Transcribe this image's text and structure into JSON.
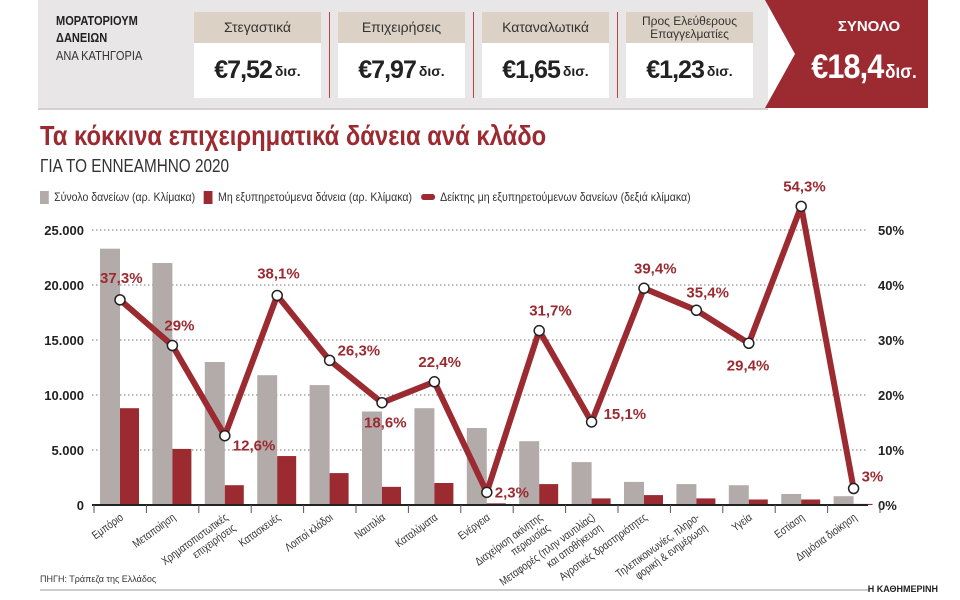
{
  "header": {
    "title": "ΜΟΡΑΤΟΡΙΟΥΜ ΔΑΝΕΙΩΝ",
    "subtitle": "ΑΝΑ ΚΑΤΗΓΟΡΙΑ",
    "cards": [
      {
        "label": "Στεγαστικά",
        "value": "€7,52",
        "unit": "δισ."
      },
      {
        "label": "Επιχειρήσεις",
        "value": "€7,97",
        "unit": "δισ."
      },
      {
        "label": "Καταναλωτικά",
        "value": "€1,65",
        "unit": "δισ."
      },
      {
        "label": "Προς Ελεύθερους Επαγγελματίες",
        "value": "€1,23",
        "unit": "δισ."
      }
    ],
    "total": {
      "label": "ΣΥΝΟΛΟ",
      "value": "€18,4",
      "unit": "δισ."
    },
    "accent": "#9b2a31"
  },
  "chart_data": {
    "type": "bar",
    "title": "Τα κόκκινα επιχειρηματικά δάνεια ανά κλάδο",
    "subtitle": "ΓΙΑ ΤΟ ΕΝΝΕΑΜΗΝΟ 2020",
    "categories": [
      "Εμπόριο",
      "Μεταποίηση",
      "Χρηματοπιστωτικές επιχειρήσεις",
      "Κατασκευές",
      "Λοιποί κλάδοι",
      "Ναυτιλία",
      "Καταλύματα",
      "Ενέργεια",
      "Διαχείριση ακίνητης περιουσίας",
      "Μεταφορές (πλην ναυτιλίας) και αποθήκευση",
      "Αγροτικές δραστηριότητες",
      "Τηλεπικοινωνίες, πληροφορική & ενημέρωση",
      "Υγεία",
      "Εστίαση",
      "Δημόσια διοίκηση"
    ],
    "category_lines": [
      [
        "Εμπόριο"
      ],
      [
        "Μεταποίηση"
      ],
      [
        "Χρηματοπιστωτικές",
        "επιχειρήσεις"
      ],
      [
        "Κατασκευές"
      ],
      [
        "Λοιποί κλάδοι"
      ],
      [
        "Ναυτιλία"
      ],
      [
        "Καταλύματα"
      ],
      [
        "Ενέργεια"
      ],
      [
        "Διαχείριση ακίνητης",
        "περιουσίας"
      ],
      [
        "Μεταφορές (πλην ναυτιλίας)",
        "και αποθήκευση"
      ],
      [
        "Αγροτικές δραστηριότητες"
      ],
      [
        "Τηλεπικοινωνίες, πληρο-",
        "φορική & ενημέρωση"
      ],
      [
        "Υγεία"
      ],
      [
        "Εστίαση"
      ],
      [
        "Δημόσια διοίκηση"
      ]
    ],
    "series": [
      {
        "name": "Σύνολο δανείων (αρ. Κλίμακα)",
        "type": "bar",
        "axis": "left",
        "color": "#b3abaa",
        "values": [
          23300,
          22000,
          13000,
          11800,
          10900,
          8500,
          8800,
          7000,
          5800,
          3900,
          2100,
          1900,
          1800,
          1000,
          800
        ]
      },
      {
        "name": "Μη εξυπηρετούμενα δάνεια (αρ. Κλίμακα)",
        "type": "bar",
        "axis": "left",
        "color": "#9b2a31",
        "values": [
          8800,
          5100,
          1800,
          4450,
          2900,
          1650,
          2000,
          150,
          1900,
          600,
          900,
          600,
          500,
          500,
          100
        ]
      },
      {
        "name": "Δείκτης μη εξυπηρετούμενων δανείων (δεξιά κλίμακα)",
        "type": "line",
        "axis": "right",
        "color": "#9b2a31",
        "values": [
          37.3,
          29,
          12.6,
          38.1,
          26.3,
          18.6,
          22.4,
          2.3,
          31.7,
          15.1,
          39.4,
          35.4,
          29.4,
          54.3,
          3
        ],
        "labels": [
          "37,3%",
          "29%",
          "12,6%",
          "38,1%",
          "26,3%",
          "18,6%",
          "22,4%",
          "2,3%",
          "31,7%",
          "15,1%",
          "39,4%",
          "35,4%",
          "29,4%",
          "54,3%",
          "3%"
        ]
      }
    ],
    "y_left": {
      "ylim": [
        0,
        25000
      ],
      "ticks": [
        "0",
        "5.000",
        "10.000",
        "15.000",
        "20.000",
        "25.000"
      ]
    },
    "y_right": {
      "ylim": [
        0,
        50
      ],
      "ticks": [
        "0%",
        "10%",
        "20%",
        "30%",
        "40%",
        "50%"
      ]
    },
    "grid": true,
    "legend": "top-left"
  },
  "footer": {
    "source": "ΠΗΓΗ: Τράπεζα της Ελλάδος",
    "brand": "Η ΚΑΘΗΜΕΡΙΝΗ"
  }
}
